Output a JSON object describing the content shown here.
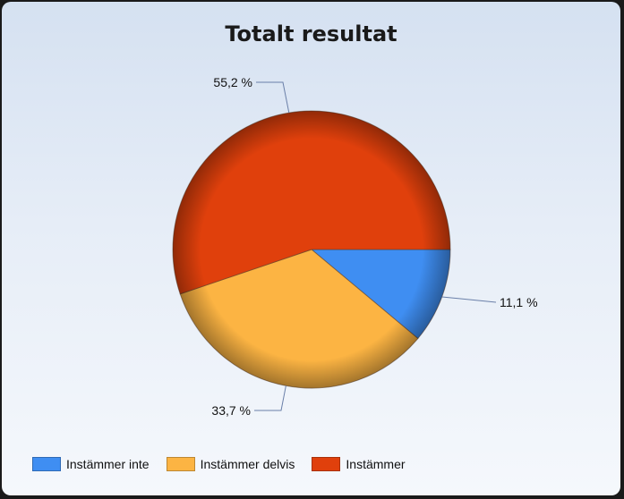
{
  "chart_data": {
    "type": "pie",
    "title": "Totalt resultat",
    "slices": [
      {
        "label": "Instämmer inte",
        "value": 11.1,
        "value_label": "11,1 %",
        "color": "#3f8ef2"
      },
      {
        "label": "Instämmer delvis",
        "value": 33.7,
        "value_label": "33,7 %",
        "color": "#fcb443"
      },
      {
        "label": "Instämmer",
        "value": 55.2,
        "value_label": "55,2 %",
        "color": "#e0400c"
      }
    ],
    "legend_position": "bottom-left"
  }
}
